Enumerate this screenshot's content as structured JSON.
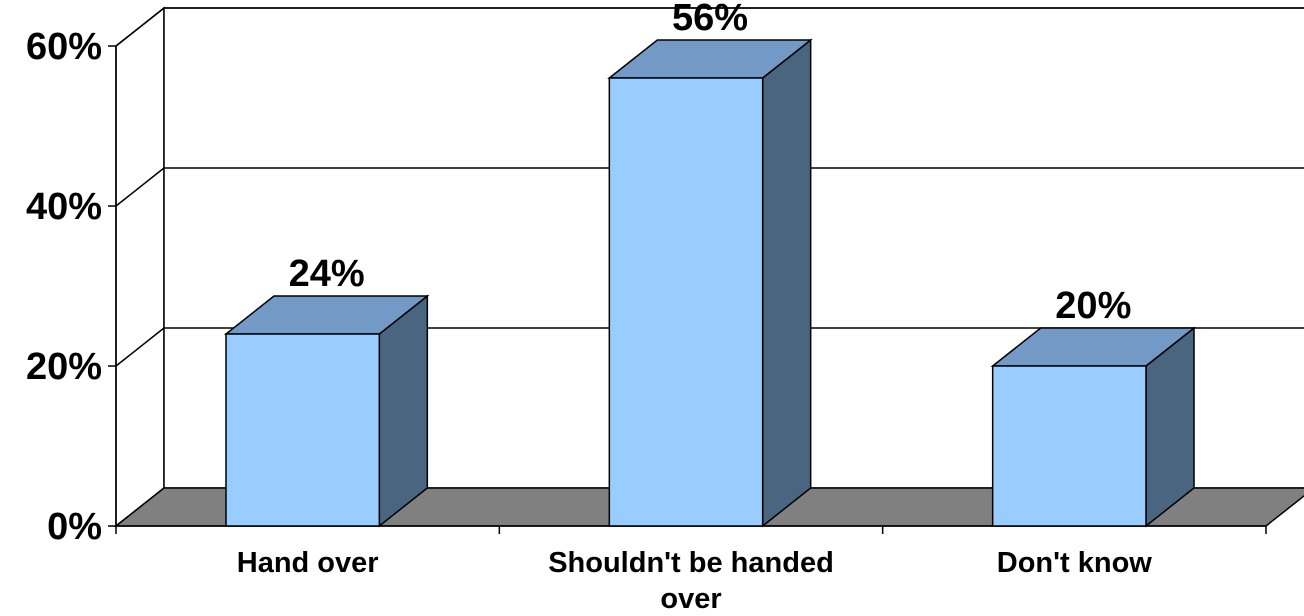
{
  "chart_data": {
    "type": "bar",
    "title": "",
    "xlabel": "",
    "ylabel": "",
    "categories": [
      "Hand over",
      "Shouldn't be handed over",
      "Don't know"
    ],
    "category_lines": [
      [
        "Hand over"
      ],
      [
        "Shouldn't be handed",
        "over"
      ],
      [
        "Don't know"
      ]
    ],
    "values": [
      24,
      56,
      20
    ],
    "data_labels": [
      "24%",
      "56%",
      "20%"
    ],
    "ylim": [
      0,
      60
    ],
    "yticks": [
      0,
      20,
      40,
      60
    ],
    "ytick_labels": [
      "0%",
      "20%",
      "40%",
      "60%"
    ],
    "grid": true,
    "style": "3d-column",
    "colors": {
      "bar_front": "#99ccff",
      "bar_top": "#7399c6",
      "bar_side": "#4a6580",
      "floor": "#808080"
    }
  }
}
